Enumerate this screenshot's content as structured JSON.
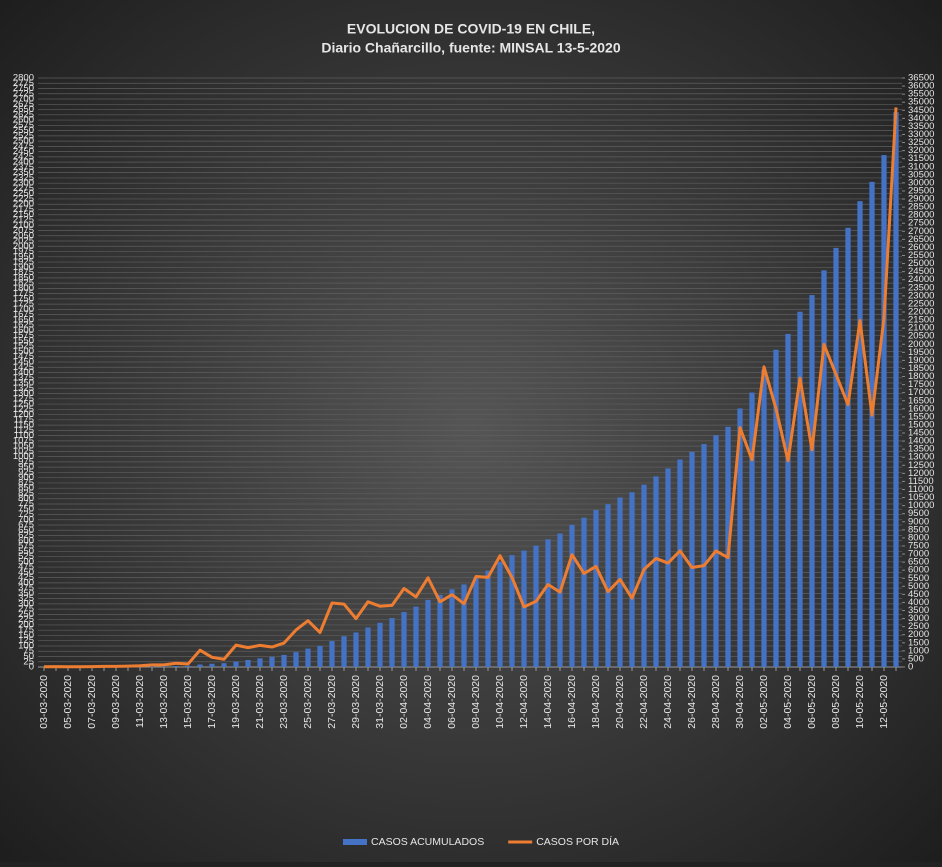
{
  "chart_data": {
    "type": "combo",
    "title": "EVOLUCION  DE COVID-19  EN CHILE,",
    "subtitle": "Diario Chañarcillo, fuente: MINSAL 13-5-2020",
    "categories": [
      "03-03-2020",
      null,
      "05-03-2020",
      null,
      "07-03-2020",
      null,
      "09-03-2020",
      null,
      "11-03-2020",
      null,
      "13-03-2020",
      null,
      "15-03-2020",
      null,
      "17-03-2020",
      null,
      "19-03-2020",
      null,
      "21-03-2020",
      null,
      "23-03-2020",
      null,
      "25-03-2020",
      null,
      "27-03-2020",
      null,
      "29-03-2020",
      null,
      "31-03-2020",
      null,
      "02-04-2020",
      null,
      "04-04-2020",
      null,
      "06-04-2020",
      null,
      "08-04-2020",
      null,
      "10-04-2020",
      null,
      "12-04-2020",
      null,
      "14-04-2020",
      null,
      "16-04-2020",
      null,
      "18-04-2020",
      null,
      "20-04-2020",
      null,
      "22-04-2020",
      null,
      "24-04-2020",
      null,
      "26-04-2020",
      null,
      "28-04-2020",
      null,
      "30-04-2020",
      null,
      "02-05-2020",
      null,
      "04-05-2020",
      null,
      "06-05-2020",
      null,
      "08-05-2020",
      null,
      "10-05-2020",
      null,
      "12-05-2020",
      null
    ],
    "series": [
      {
        "name": "CASOS ACUMULADOS",
        "type": "bar",
        "axis": "y2",
        "color": "#4472c4",
        "values": [
          1,
          3,
          4,
          5,
          7,
          10,
          13,
          17,
          23,
          33,
          43,
          61,
          75,
          155,
          201,
          238,
          342,
          434,
          537,
          632,
          746,
          922,
          1142,
          1306,
          1610,
          1909,
          2139,
          2449,
          2738,
          3031,
          3404,
          3737,
          4161,
          4471,
          4815,
          5116,
          5546,
          5972,
          6501,
          6927,
          7213,
          7525,
          7917,
          8273,
          8807,
          9252,
          9730,
          10088,
          10505,
          10832,
          11296,
          11812,
          12306,
          12858,
          13331,
          13813,
          14365,
          14885,
          16023,
          17008,
          18435,
          19663,
          20643,
          22016,
          23048,
          24581,
          25972,
          27219,
          28866,
          30063,
          31721,
          34381
        ]
      },
      {
        "name": "CASOS POR DÍA",
        "type": "line",
        "color": "#ed7d31",
        "values": [
          1,
          2,
          1,
          1,
          2,
          3,
          3,
          4,
          6,
          10,
          10,
          18,
          14,
          80,
          46,
          37,
          104,
          92,
          103,
          95,
          114,
          176,
          220,
          164,
          304,
          299,
          230,
          310,
          289,
          293,
          373,
          333,
          424,
          310,
          344,
          301,
          430,
          426,
          529,
          426,
          286,
          312,
          392,
          356,
          534,
          445,
          478,
          358,
          417,
          327,
          464,
          516,
          494,
          552,
          473,
          482,
          552,
          520,
          1138,
          985,
          1427,
          1228,
          980,
          1373,
          1032,
          1533,
          1391,
          1247,
          1647,
          1197,
          1658,
          2660
        ]
      }
    ],
    "ylim": [
      0,
      2800
    ],
    "yticks": [
      0,
      25,
      50,
      75,
      100,
      125,
      150,
      175,
      200,
      225,
      250,
      275,
      300,
      325,
      350,
      375,
      400,
      425,
      450,
      475,
      500,
      525,
      550,
      575,
      600,
      625,
      650,
      675,
      700,
      725,
      750,
      775,
      800,
      825,
      850,
      875,
      900,
      925,
      950,
      975,
      1000,
      1025,
      1050,
      1075,
      1100,
      1125,
      1150,
      1175,
      1200,
      1225,
      1250,
      1275,
      1300,
      1325,
      1350,
      1375,
      1400,
      1425,
      1450,
      1475,
      1500,
      1525,
      1550,
      1575,
      1600,
      1625,
      1650,
      1675,
      1700,
      1725,
      1750,
      1775,
      1800,
      1825,
      1850,
      1875,
      1900,
      1925,
      1950,
      1975,
      2000,
      2025,
      2050,
      2075,
      2100,
      2125,
      2150,
      2175,
      2200,
      2225,
      2250,
      2275,
      2300,
      2325,
      2350,
      2375,
      2400,
      2425,
      2450,
      2475,
      2500,
      2525,
      2550,
      2575,
      2600,
      2625,
      2650,
      2675,
      2700,
      2725,
      2750,
      2775,
      2800
    ],
    "y2lim": [
      0,
      36500
    ],
    "y2ticks": [
      0,
      500,
      1000,
      1500,
      2000,
      2500,
      3000,
      3500,
      4000,
      4500,
      5000,
      5500,
      6000,
      6500,
      7000,
      7500,
      8000,
      8500,
      9000,
      9500,
      10000,
      10500,
      11000,
      11500,
      12000,
      12500,
      13000,
      13500,
      14000,
      14500,
      15000,
      15500,
      16000,
      16500,
      17000,
      17500,
      18000,
      18500,
      19000,
      19500,
      20000,
      20500,
      21000,
      21500,
      22000,
      22500,
      23000,
      23500,
      24000,
      24500,
      25000,
      25500,
      26000,
      26500,
      27000,
      27500,
      28000,
      28500,
      29000,
      29500,
      30000,
      30500,
      31000,
      31500,
      32000,
      32500,
      33000,
      33500,
      34000,
      34500,
      35000,
      35500,
      36000,
      36500
    ],
    "grid": true,
    "legend": "bottom"
  }
}
